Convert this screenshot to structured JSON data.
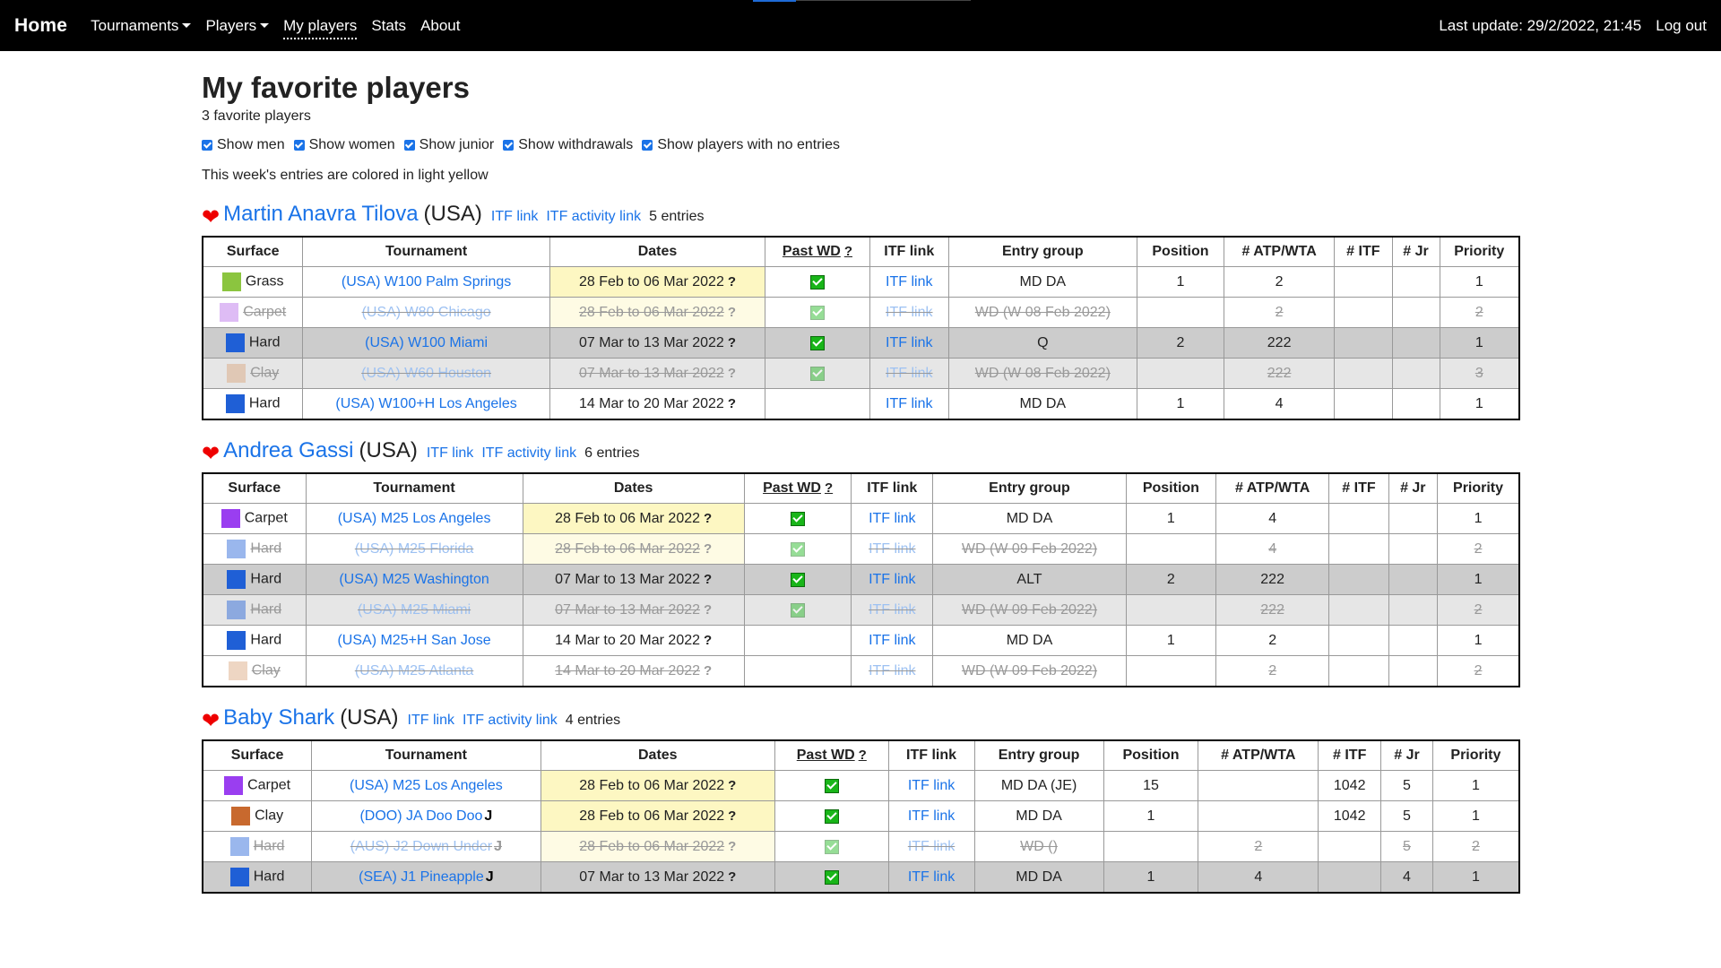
{
  "nav": {
    "brand": "Home",
    "items": [
      {
        "label": "Tournaments",
        "dropdown": true
      },
      {
        "label": "Players",
        "dropdown": true
      },
      {
        "label": "My players",
        "dropdown": false,
        "active": true
      },
      {
        "label": "Stats",
        "dropdown": false
      },
      {
        "label": "About",
        "dropdown": false
      }
    ],
    "last_update": "Last update: 29/2/2022, 21:45",
    "logout": "Log out"
  },
  "page": {
    "title": "My favorite players",
    "subtitle": "3 favorite players",
    "filters": [
      "Show men",
      "Show women",
      "Show junior",
      "Show withdrawals",
      "Show players with no entries"
    ],
    "note": "This week's entries are colored in light yellow"
  },
  "columns": [
    "Surface",
    "Tournament",
    "Dates",
    "Past WD",
    "ITF link",
    "Entry group",
    "Position",
    "# ATP/WTA",
    "# ITF",
    "# Jr",
    "Priority"
  ],
  "players": [
    {
      "name": "Martin Anavra Tilova",
      "country": "(USA)",
      "itf_link": "ITF link",
      "activity_link": "ITF activity link",
      "entries_text": "5 entries",
      "rows": [
        {
          "surface": "Grass",
          "color": "#8bc53f",
          "tournament": "(USA) W100 Palm Springs",
          "junior": false,
          "dates": "28 Feb to 06 Mar 2022",
          "past_wd": true,
          "itf": "ITF link",
          "group": "MD DA",
          "pos": "1",
          "atp": "2",
          "itf_rank": "",
          "jr": "",
          "prio": "1",
          "current": true,
          "grey": false,
          "wd": false
        },
        {
          "surface": "Carpet",
          "color": "#b66ae8",
          "tournament": "(USA) W80 Chicago",
          "junior": false,
          "dates": "28 Feb to 06 Mar 2022",
          "past_wd": true,
          "itf": "ITF link",
          "group": "WD (W 08 Feb 2022)",
          "pos": "",
          "atp": "2",
          "itf_rank": "",
          "jr": "",
          "prio": "2",
          "current": true,
          "grey": false,
          "wd": true
        },
        {
          "surface": "Hard",
          "color": "#1f5fd6",
          "tournament": "(USA) W100 Miami",
          "junior": false,
          "dates": "07 Mar to 13 Mar 2022",
          "past_wd": true,
          "itf": "ITF link",
          "group": "Q",
          "pos": "2",
          "atp": "222",
          "itf_rank": "",
          "jr": "",
          "prio": "1",
          "current": false,
          "grey": true,
          "wd": false
        },
        {
          "surface": "Clay",
          "color": "#d9a47a",
          "tournament": "(USA) W60 Houston",
          "junior": false,
          "dates": "07 Mar to 13 Mar 2022",
          "past_wd": true,
          "itf": "ITF link",
          "group": "WD (W 08 Feb 2022)",
          "pos": "",
          "atp": "222",
          "itf_rank": "",
          "jr": "",
          "prio": "3",
          "current": false,
          "grey": true,
          "wd": true
        },
        {
          "surface": "Hard",
          "color": "#1f5fd6",
          "tournament": "(USA) W100+H Los Angeles",
          "junior": false,
          "dates": "14 Mar to 20 Mar 2022",
          "past_wd": false,
          "itf": "ITF link",
          "group": "MD DA",
          "pos": "1",
          "atp": "4",
          "itf_rank": "",
          "jr": "",
          "prio": "1",
          "current": false,
          "grey": false,
          "wd": false
        }
      ]
    },
    {
      "name": "Andrea Gassi",
      "country": "(USA)",
      "itf_link": "ITF link",
      "activity_link": "ITF activity link",
      "entries_text": "6 entries",
      "rows": [
        {
          "surface": "Carpet",
          "color": "#9a3ef0",
          "tournament": "(USA) M25 Los Angeles",
          "junior": false,
          "dates": "28 Feb to 06 Mar 2022",
          "past_wd": true,
          "itf": "ITF link",
          "group": "MD DA",
          "pos": "1",
          "atp": "4",
          "itf_rank": "",
          "jr": "",
          "prio": "1",
          "current": true,
          "grey": false,
          "wd": false
        },
        {
          "surface": "Hard",
          "color": "#1f5fd6",
          "tournament": "(USA) M25 Florida",
          "junior": false,
          "dates": "28 Feb to 06 Mar 2022",
          "past_wd": true,
          "itf": "ITF link",
          "group": "WD (W 09 Feb 2022)",
          "pos": "",
          "atp": "4",
          "itf_rank": "",
          "jr": "",
          "prio": "2",
          "current": true,
          "grey": false,
          "wd": true
        },
        {
          "surface": "Hard",
          "color": "#1f5fd6",
          "tournament": "(USA) M25 Washington",
          "junior": false,
          "dates": "07 Mar to 13 Mar 2022",
          "past_wd": true,
          "itf": "ITF link",
          "group": "ALT",
          "pos": "2",
          "atp": "222",
          "itf_rank": "",
          "jr": "",
          "prio": "1",
          "current": false,
          "grey": true,
          "wd": false
        },
        {
          "surface": "Hard",
          "color": "#1f5fd6",
          "tournament": "(USA) M25 Miami",
          "junior": false,
          "dates": "07 Mar to 13 Mar 2022",
          "past_wd": true,
          "itf": "ITF link",
          "group": "WD (W 09 Feb 2022)",
          "pos": "",
          "atp": "222",
          "itf_rank": "",
          "jr": "",
          "prio": "2",
          "current": false,
          "grey": true,
          "wd": true
        },
        {
          "surface": "Hard",
          "color": "#1f5fd6",
          "tournament": "(USA) M25+H San Jose",
          "junior": false,
          "dates": "14 Mar to 20 Mar 2022",
          "past_wd": false,
          "itf": "ITF link",
          "group": "MD DA",
          "pos": "1",
          "atp": "2",
          "itf_rank": "",
          "jr": "",
          "prio": "1",
          "current": false,
          "grey": false,
          "wd": false
        },
        {
          "surface": "Clay",
          "color": "#d9a47a",
          "tournament": "(USA) M25 Atlanta",
          "junior": false,
          "dates": "14 Mar to 20 Mar 2022",
          "past_wd": false,
          "itf": "ITF link",
          "group": "WD (W 09 Feb 2022)",
          "pos": "",
          "atp": "2",
          "itf_rank": "",
          "jr": "",
          "prio": "2",
          "current": false,
          "grey": false,
          "wd": true
        }
      ]
    },
    {
      "name": "Baby Shark",
      "country": "(USA)",
      "itf_link": "ITF link",
      "activity_link": "ITF activity link",
      "entries_text": "4 entries",
      "rows": [
        {
          "surface": "Carpet",
          "color": "#9a3ef0",
          "tournament": "(USA) M25 Los Angeles",
          "junior": false,
          "dates": "28 Feb to 06 Mar 2022",
          "past_wd": true,
          "itf": "ITF link",
          "group": "MD DA (JE)",
          "pos": "15",
          "atp": "",
          "itf_rank": "1042",
          "jr": "5",
          "prio": "1",
          "current": true,
          "grey": false,
          "wd": false
        },
        {
          "surface": "Clay",
          "color": "#c8692e",
          "tournament": "(DOO) JA Doo Doo",
          "junior": true,
          "dates": "28 Feb to 06 Mar 2022",
          "past_wd": true,
          "itf": "ITF link",
          "group": "MD DA",
          "pos": "1",
          "atp": "",
          "itf_rank": "1042",
          "jr": "5",
          "prio": "1",
          "current": true,
          "grey": false,
          "wd": false
        },
        {
          "surface": "Hard",
          "color": "#1f5fd6",
          "tournament": "(AUS) J2 Down Under",
          "junior": true,
          "dates": "28 Feb to 06 Mar 2022",
          "past_wd": true,
          "itf": "ITF link",
          "group": "WD ()",
          "pos": "",
          "atp": "2",
          "itf_rank": "",
          "jr": "5",
          "prio": "2",
          "current": true,
          "grey": false,
          "wd": true
        },
        {
          "surface": "Hard",
          "color": "#1f5fd6",
          "tournament": "(SEA) J1 Pineapple",
          "junior": true,
          "dates": "07 Mar to 13 Mar 2022",
          "past_wd": true,
          "itf": "ITF link",
          "group": "MD DA",
          "pos": "1",
          "atp": "4",
          "itf_rank": "",
          "jr": "4",
          "prio": "1",
          "current": false,
          "grey": true,
          "wd": false
        }
      ]
    }
  ],
  "junior_marker": "J"
}
